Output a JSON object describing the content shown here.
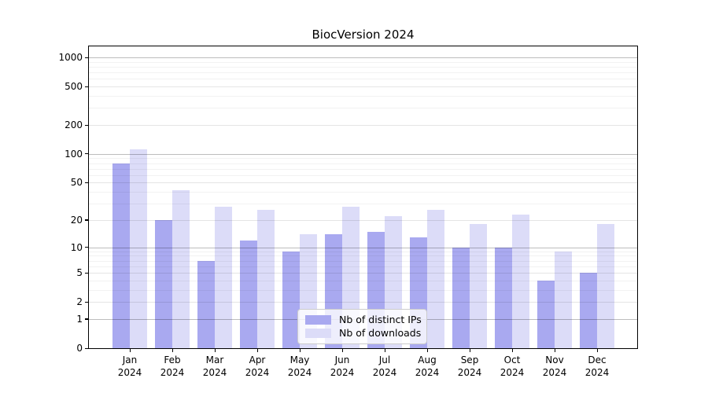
{
  "chart_data": {
    "type": "bar",
    "title": "BiocVersion 2024",
    "categories": [
      "Jan",
      "Feb",
      "Mar",
      "Apr",
      "May",
      "Jun",
      "Jul",
      "Aug",
      "Sep",
      "Oct",
      "Nov",
      "Dec"
    ],
    "category_year": "2024",
    "series": [
      {
        "name": "Nb of distinct IPs",
        "color": "#a9a9f0",
        "values": [
          80,
          20,
          7,
          12,
          9,
          14,
          15,
          13,
          10,
          10,
          4,
          5
        ]
      },
      {
        "name": "Nb of downloads",
        "color": "#dcdcf8",
        "values": [
          112,
          42,
          28,
          26,
          14,
          28,
          22,
          26,
          18,
          23,
          9,
          18
        ]
      }
    ],
    "y_axis": {
      "ticks": [
        0,
        1,
        2,
        5,
        10,
        20,
        50,
        100,
        200,
        500,
        1000
      ],
      "scale": "log10(1+x)",
      "range": [
        0,
        1300
      ]
    },
    "grid": true,
    "legend_position": "lower center"
  }
}
